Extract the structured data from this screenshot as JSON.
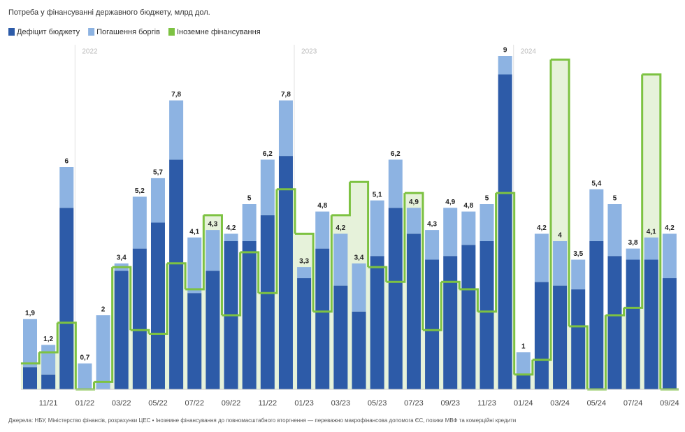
{
  "chart_data": {
    "type": "bar",
    "title": "Потреба у фінансуванні державного бюджету, млрд дол.",
    "categories": [
      null,
      "11/21",
      null,
      "01/22",
      null,
      "03/22",
      null,
      "05/22",
      null,
      "07/22",
      null,
      "09/22",
      null,
      "11/22",
      null,
      "01/23",
      null,
      "03/23",
      null,
      "05/23",
      null,
      "07/23",
      null,
      "09/23",
      null,
      "11/23",
      null,
      "01/24",
      null,
      "03/24",
      null,
      "05/24",
      null,
      "07/24",
      null,
      "09/24"
    ],
    "series": [
      {
        "name": "Дефіцит бюджету",
        "color": "#2d5ba8",
        "values": [
          0.6,
          0.4,
          4.9,
          0,
          0,
          3.2,
          3.8,
          4.5,
          6.2,
          2.6,
          3.2,
          4.0,
          4.0,
          4.7,
          6.3,
          3.0,
          3.8,
          2.8,
          2.1,
          3.6,
          4.9,
          4.2,
          3.5,
          3.6,
          3.9,
          4.0,
          8.5,
          0.4,
          2.9,
          2.8,
          2.7,
          4.0,
          3.6,
          3.5,
          3.5,
          3.0
        ]
      },
      {
        "name": "Погашення боргів",
        "color": "#8db3e2",
        "values": [
          1.3,
          0.8,
          1.1,
          0.7,
          2,
          0.2,
          1.4,
          1.2,
          1.6,
          1.5,
          1.1,
          0.2,
          1.0,
          1.5,
          1.5,
          0.3,
          1.0,
          1.4,
          1.3,
          1.5,
          1.3,
          0.7,
          0.8,
          1.3,
          0.9,
          1.0,
          0.5,
          0.6,
          1.3,
          1.2,
          0.8,
          1.4,
          1.4,
          0.3,
          0.6,
          1.2
        ]
      },
      {
        "name": "Іноземне фінансування",
        "color": "#7dc242",
        "fill": "#e6f2da",
        "values": [
          0.7,
          1.0,
          1.8,
          0,
          0.2,
          3.3,
          1.6,
          1.5,
          3.4,
          2.7,
          4.7,
          2.0,
          3.7,
          2.6,
          5.4,
          4.2,
          2.1,
          4.7,
          5.6,
          3.3,
          2.9,
          5.3,
          1.6,
          2.9,
          2.7,
          2.1,
          5.3,
          0.4,
          0.8,
          8.9,
          1.7,
          0,
          2.0,
          2.2,
          8.5,
          0
        ]
      }
    ],
    "totals": [
      1.9,
      1.2,
      6,
      0.7,
      2,
      3.4,
      5.2,
      5.7,
      7.8,
      4.1,
      4.3,
      4.2,
      5,
      6.2,
      7.8,
      3.3,
      4.8,
      4.2,
      3.4,
      5.1,
      6.2,
      4.9,
      4.3,
      4.9,
      4.8,
      5,
      9,
      1,
      4.2,
      4,
      3.5,
      5.4,
      5,
      3.8,
      4.1,
      4.2
    ],
    "total_labels": [
      "1,9",
      "1,2",
      "6",
      "0,7",
      "2",
      "3,4",
      "5,2",
      "5,7",
      "7,8",
      "4,1",
      "4,3",
      "4,2",
      "5",
      "6,2",
      "7,8",
      "3,3",
      "4,8",
      "4,2",
      "3,4",
      "5,1",
      "6,2",
      "4,9",
      "4,3",
      "4,9",
      "4,8",
      "5",
      "9",
      "1",
      "4,2",
      "4",
      "3,5",
      "5,4",
      "5",
      "3,8",
      "4,1",
      "4,2"
    ],
    "years": [
      {
        "label": "2022",
        "start": 3
      },
      {
        "label": "2023",
        "start": 15
      },
      {
        "label": "2024",
        "start": 27
      }
    ],
    "ylim": [
      0,
      9
    ],
    "note": "Джерела: НБУ, Міністерство фінансів, розрахунки ЦЕС • Іноземне фінансування до повномасштабного вторгнення — переважно макрофінансова допомога ЄС, позики МВФ та комерційні кредити"
  }
}
